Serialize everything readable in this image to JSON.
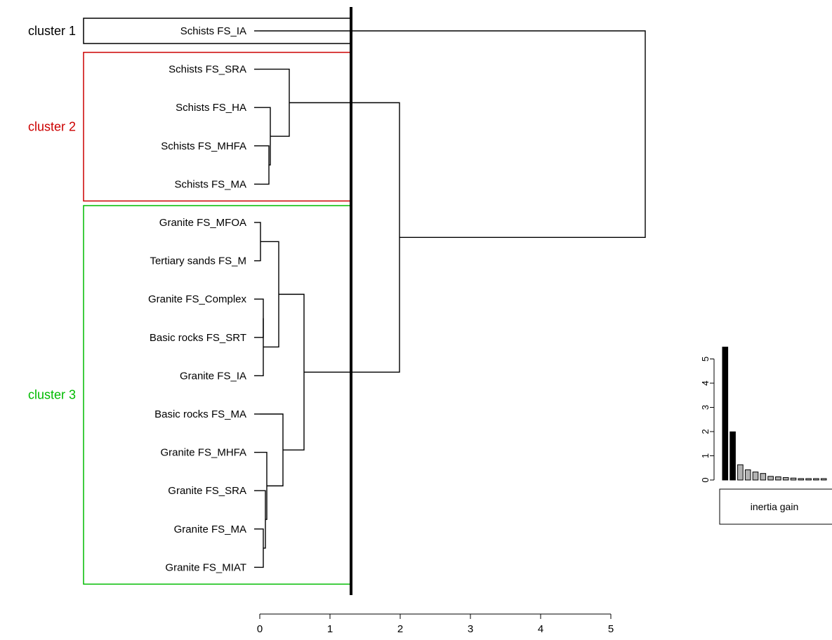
{
  "chart_data": [
    {
      "type": "dendrogram",
      "orientation": "horizontal",
      "xlim": [
        0,
        5.5
      ],
      "x_ticks": [
        "0",
        "1",
        "2",
        "3",
        "4",
        "5"
      ],
      "cut_height": 1.3,
      "leaves": [
        "Schists FS_IA",
        "Schists FS_SRA",
        "Schists FS_HA",
        "Schists FS_MHFA",
        "Schists FS_MA",
        "Granite FS_MFOA",
        "Tertiary sands FS_M",
        "Granite FS_Complex",
        "Basic rocks FS_SRT",
        "Granite FS_IA",
        "Basic rocks FS_MA",
        "Granite FS_MHFA",
        "Granite FS_SRA",
        "Granite FS_MA",
        "Granite FS_MIAT"
      ],
      "merges": [
        {
          "a": "L3",
          "b": "L4",
          "height": 0.13
        },
        {
          "a": "L2",
          "b": "N0",
          "height": 0.15
        },
        {
          "a": "L1",
          "b": "N1",
          "height": 0.42
        },
        {
          "a": "L5",
          "b": "L6",
          "height": 0.01
        },
        {
          "a": "L7",
          "b": "L8",
          "height": 0.05
        },
        {
          "a": "N4",
          "b": "L9",
          "height": 0.05
        },
        {
          "a": "N3",
          "b": "N5",
          "height": 0.27
        },
        {
          "a": "L13",
          "b": "L14",
          "height": 0.05
        },
        {
          "a": "L12",
          "b": "N7",
          "height": 0.08
        },
        {
          "a": "L11",
          "b": "N8",
          "height": 0.1
        },
        {
          "a": "L10",
          "b": "N9",
          "height": 0.33
        },
        {
          "a": "N6",
          "b": "N10",
          "height": 0.63
        },
        {
          "a": "N2",
          "b": "N11",
          "height": 1.99
        },
        {
          "a": "L0",
          "b": "N12",
          "height": 5.49
        }
      ],
      "clusters": [
        {
          "label": "cluster 1",
          "color": "#000000",
          "first_leaf": 0,
          "last_leaf": 0
        },
        {
          "label": "cluster 2",
          "color": "#cc0000",
          "first_leaf": 1,
          "last_leaf": 4
        },
        {
          "label": "cluster 3",
          "color": "#00bb00",
          "first_leaf": 5,
          "last_leaf": 14
        }
      ]
    },
    {
      "type": "bar",
      "caption": "inertia gain",
      "ylim": [
        0,
        5.5
      ],
      "y_ticks": [
        "0",
        "1",
        "2",
        "3",
        "4",
        "5"
      ],
      "values": [
        5.49,
        1.99,
        0.63,
        0.42,
        0.33,
        0.27,
        0.15,
        0.13,
        0.1,
        0.08,
        0.05,
        0.05,
        0.05,
        0.01
      ],
      "highlighted_count": 2,
      "highlight_color": "#000000",
      "other_color": "#b3b3b3"
    }
  ]
}
